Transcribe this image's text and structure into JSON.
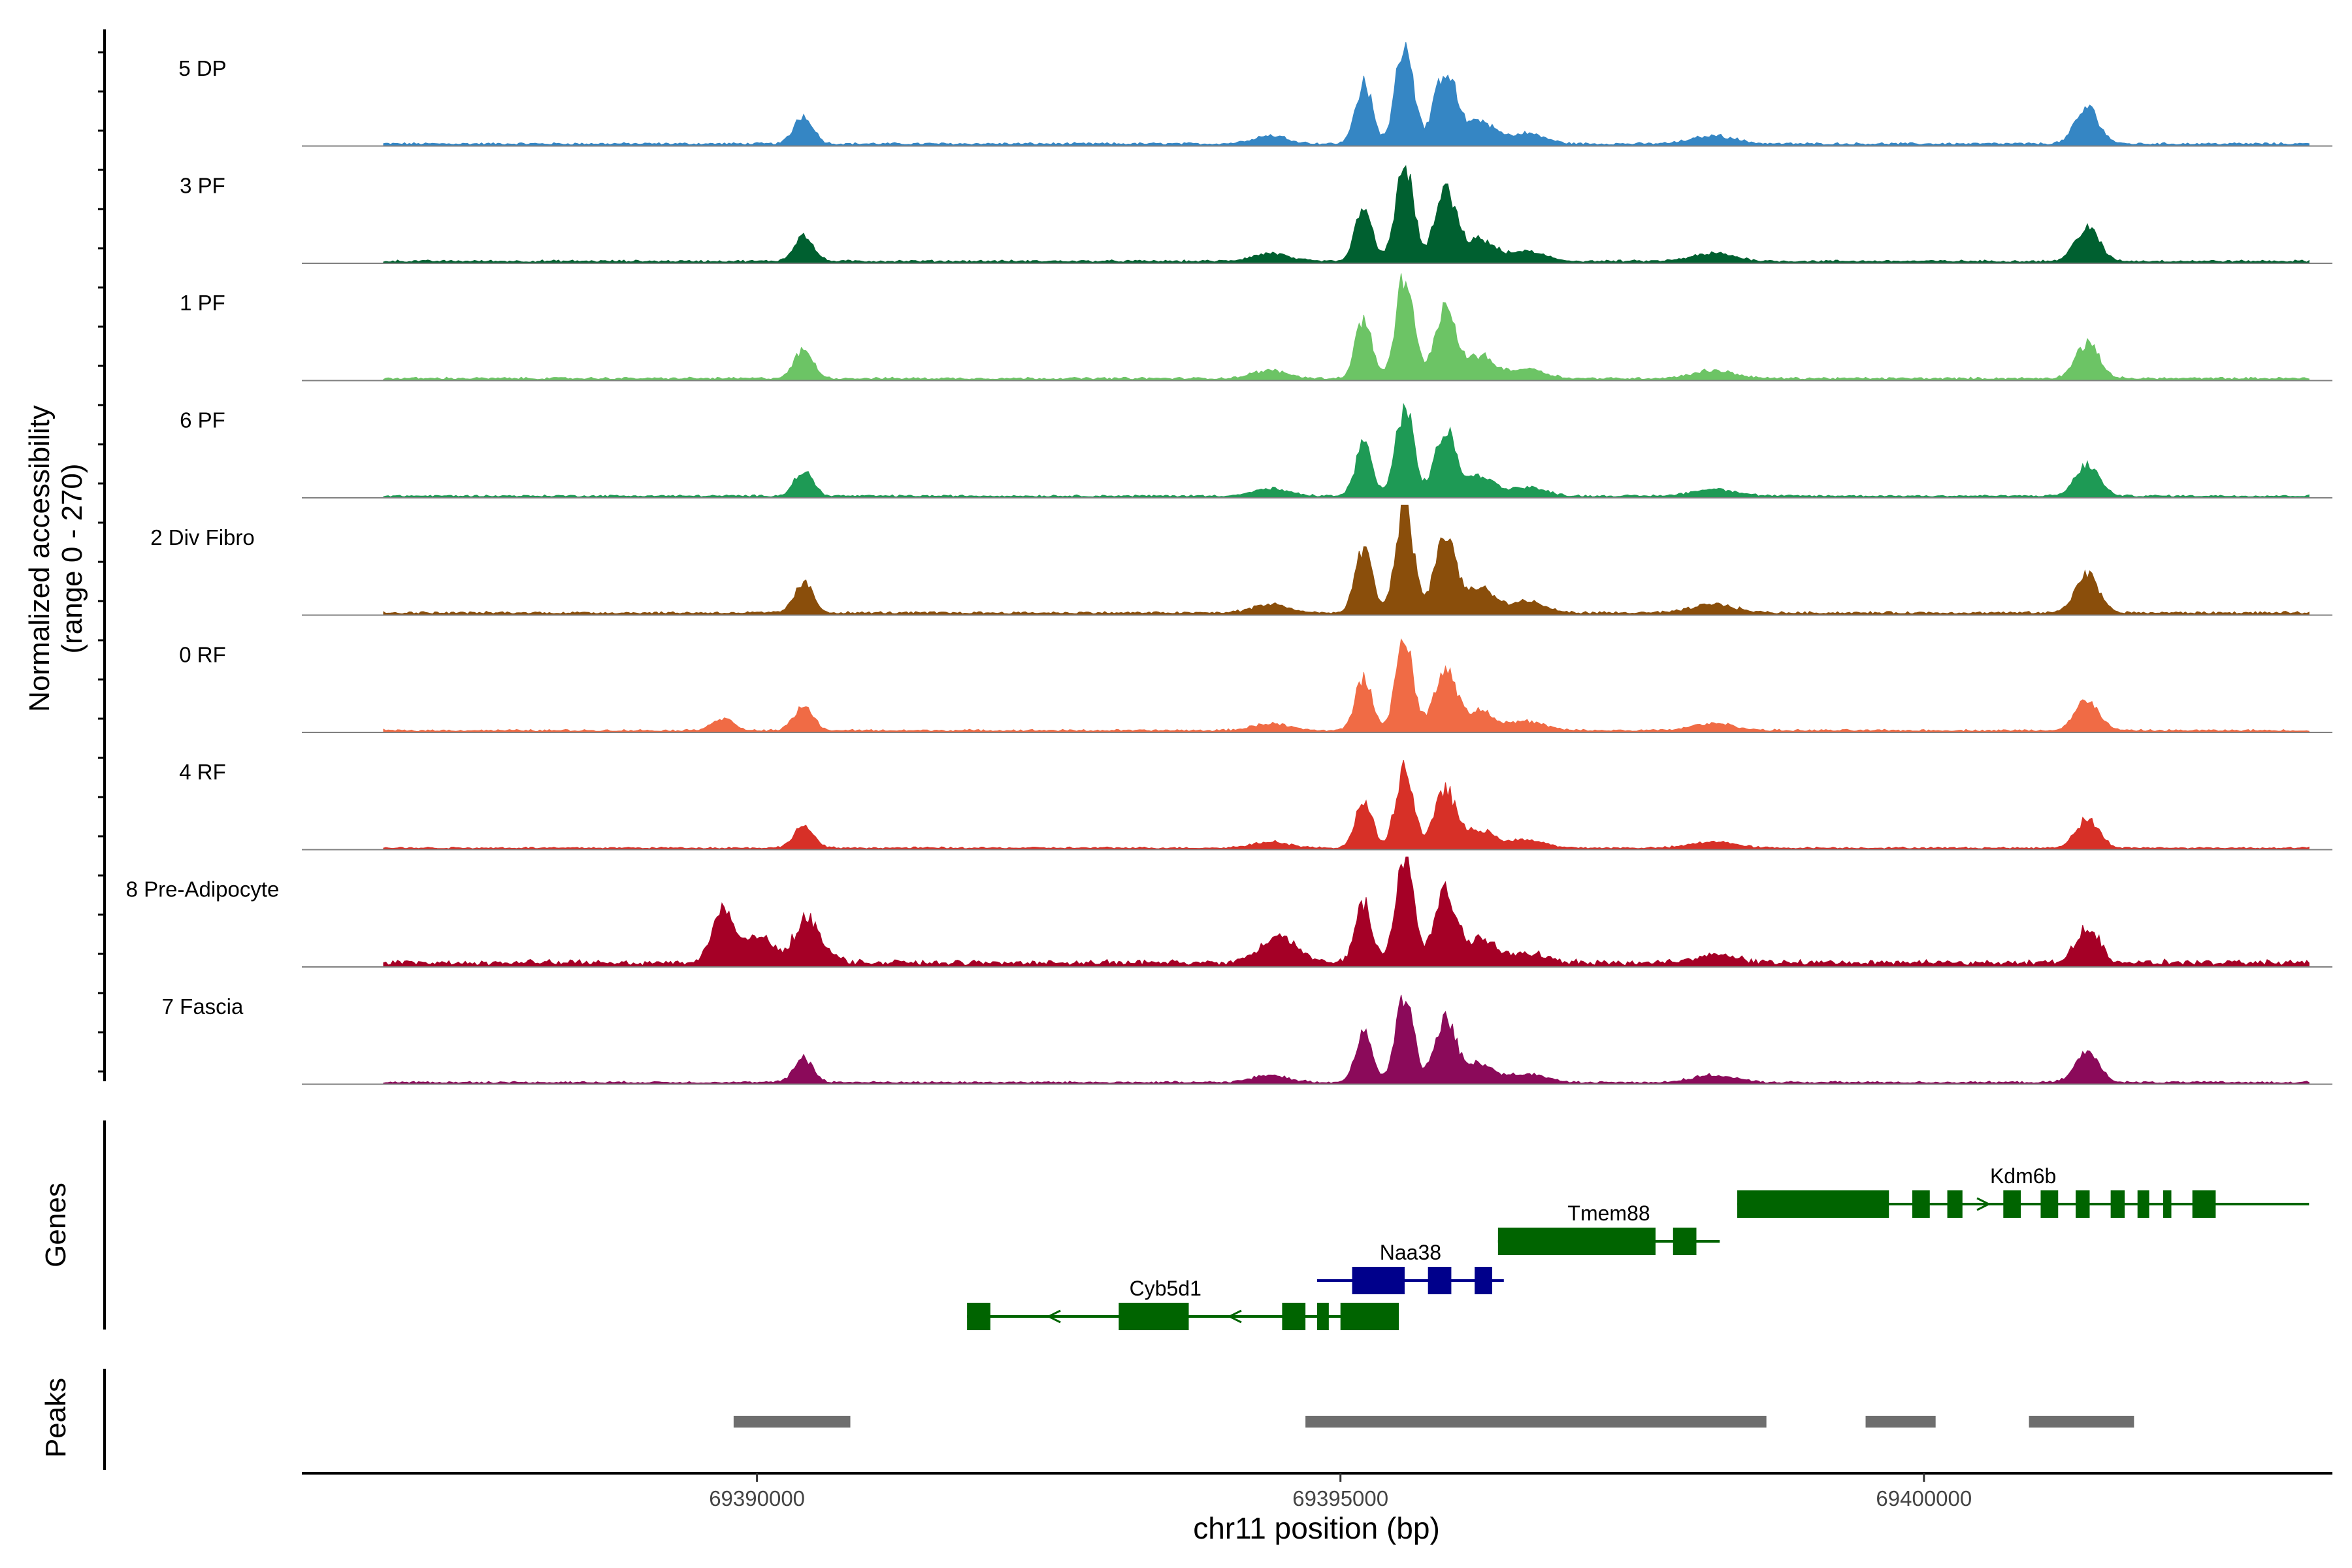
{
  "chart_data": {
    "type": "area",
    "title": "",
    "coverage_ylabel_line1": "Normalized accessibility",
    "coverage_ylabel_line2": "(range 0 - 270)",
    "ylim": [
      0,
      270
    ],
    "xlabel": "chr11 position (bp)",
    "xlim": [
      69386100,
      69403500
    ],
    "xticks": [
      69390000,
      69395000,
      69400000
    ],
    "xtick_labels": [
      "69390000",
      "69395000",
      "69400000"
    ],
    "region": [
      69386800,
      69403300
    ],
    "tracks": [
      {
        "name": "5 DP",
        "color": "#3586c4",
        "scale": 0.95,
        "rf_bump": 0,
        "adipo": 0
      },
      {
        "name": "3 PF",
        "color": "#006030",
        "scale": 0.9,
        "rf_bump": 0,
        "adipo": 0
      },
      {
        "name": "1 PF",
        "color": "#6cc465",
        "scale": 0.92,
        "rf_bump": 0,
        "adipo": 0
      },
      {
        "name": "6 PF",
        "color": "#1e9a55",
        "scale": 0.82,
        "rf_bump": 0,
        "adipo": 0
      },
      {
        "name": "2 Div Fibro",
        "color": "#8a4e0b",
        "scale": 1.0,
        "rf_bump": 0,
        "adipo": 0
      },
      {
        "name": "0 RF",
        "color": "#f06b45",
        "scale": 0.82,
        "rf_bump": 1,
        "adipo": 0
      },
      {
        "name": "4 RF",
        "color": "#d73027",
        "scale": 0.75,
        "rf_bump": 0,
        "adipo": 0
      },
      {
        "name": "8 Pre-Adipocyte",
        "color": "#a50026",
        "scale": 0.95,
        "rf_bump": 0,
        "adipo": 1
      },
      {
        "name": "7 Fascia",
        "color": "#8b0a5a",
        "scale": 0.8,
        "rf_bump": 0,
        "adipo": 0
      }
    ],
    "peaks_profile": [
      {
        "pos": 69390400,
        "height": 0.28,
        "width": 80
      },
      {
        "pos": 69394400,
        "height": 0.08,
        "width": 150
      },
      {
        "pos": 69395200,
        "height": 0.6,
        "width": 70
      },
      {
        "pos": 69395550,
        "height": 1.0,
        "width": 75
      },
      {
        "pos": 69395900,
        "height": 0.72,
        "width": 90
      },
      {
        "pos": 69396200,
        "height": 0.22,
        "width": 120
      },
      {
        "pos": 69396600,
        "height": 0.1,
        "width": 150
      },
      {
        "pos": 69398200,
        "height": 0.08,
        "width": 180
      },
      {
        "pos": 69401400,
        "height": 0.35,
        "width": 100
      }
    ],
    "genes_label": "Genes",
    "genes": [
      {
        "name": "Kdm6b",
        "start": 69398400,
        "end": 69403300,
        "strand": "+",
        "row": 0,
        "color": "#006400",
        "exons": [
          [
            69398400,
            69399700
          ],
          [
            69399900,
            69400050
          ],
          [
            69400200,
            69400330
          ],
          [
            69400680,
            69400830
          ],
          [
            69401000,
            69401150
          ],
          [
            69401300,
            69401420
          ],
          [
            69401600,
            69401720
          ],
          [
            69401830,
            69401930
          ],
          [
            69402050,
            69402120
          ],
          [
            69402300,
            69402500
          ]
        ]
      },
      {
        "name": "Tmem88",
        "start": 69396350,
        "end": 69398250,
        "strand": "+",
        "row": 1,
        "color": "#006400",
        "exons": [
          [
            69396350,
            69397700
          ],
          [
            69397850,
            69398050
          ]
        ]
      },
      {
        "name": "Naa38",
        "start": 69394800,
        "end": 69396400,
        "strand": "+",
        "row": 2,
        "color": "#00008b",
        "exons": [
          [
            69395100,
            69395550
          ],
          [
            69395750,
            69395950
          ],
          [
            69396150,
            69396300
          ]
        ]
      },
      {
        "name": "Cyb5d1",
        "start": 69391800,
        "end": 69395400,
        "strand": "-",
        "row": 3,
        "color": "#006400",
        "exons": [
          [
            69391800,
            69392000
          ],
          [
            69393100,
            69393700
          ],
          [
            69394500,
            69394700
          ],
          [
            69394800,
            69394900
          ],
          [
            69395000,
            69395500
          ]
        ]
      }
    ],
    "peaks_label": "Peaks",
    "peaks": [
      {
        "start": 69389800,
        "end": 69390800
      },
      {
        "start": 69394700,
        "end": 69398650
      },
      {
        "start": 69399500,
        "end": 69400100
      },
      {
        "start": 69400900,
        "end": 69401800
      }
    ]
  }
}
